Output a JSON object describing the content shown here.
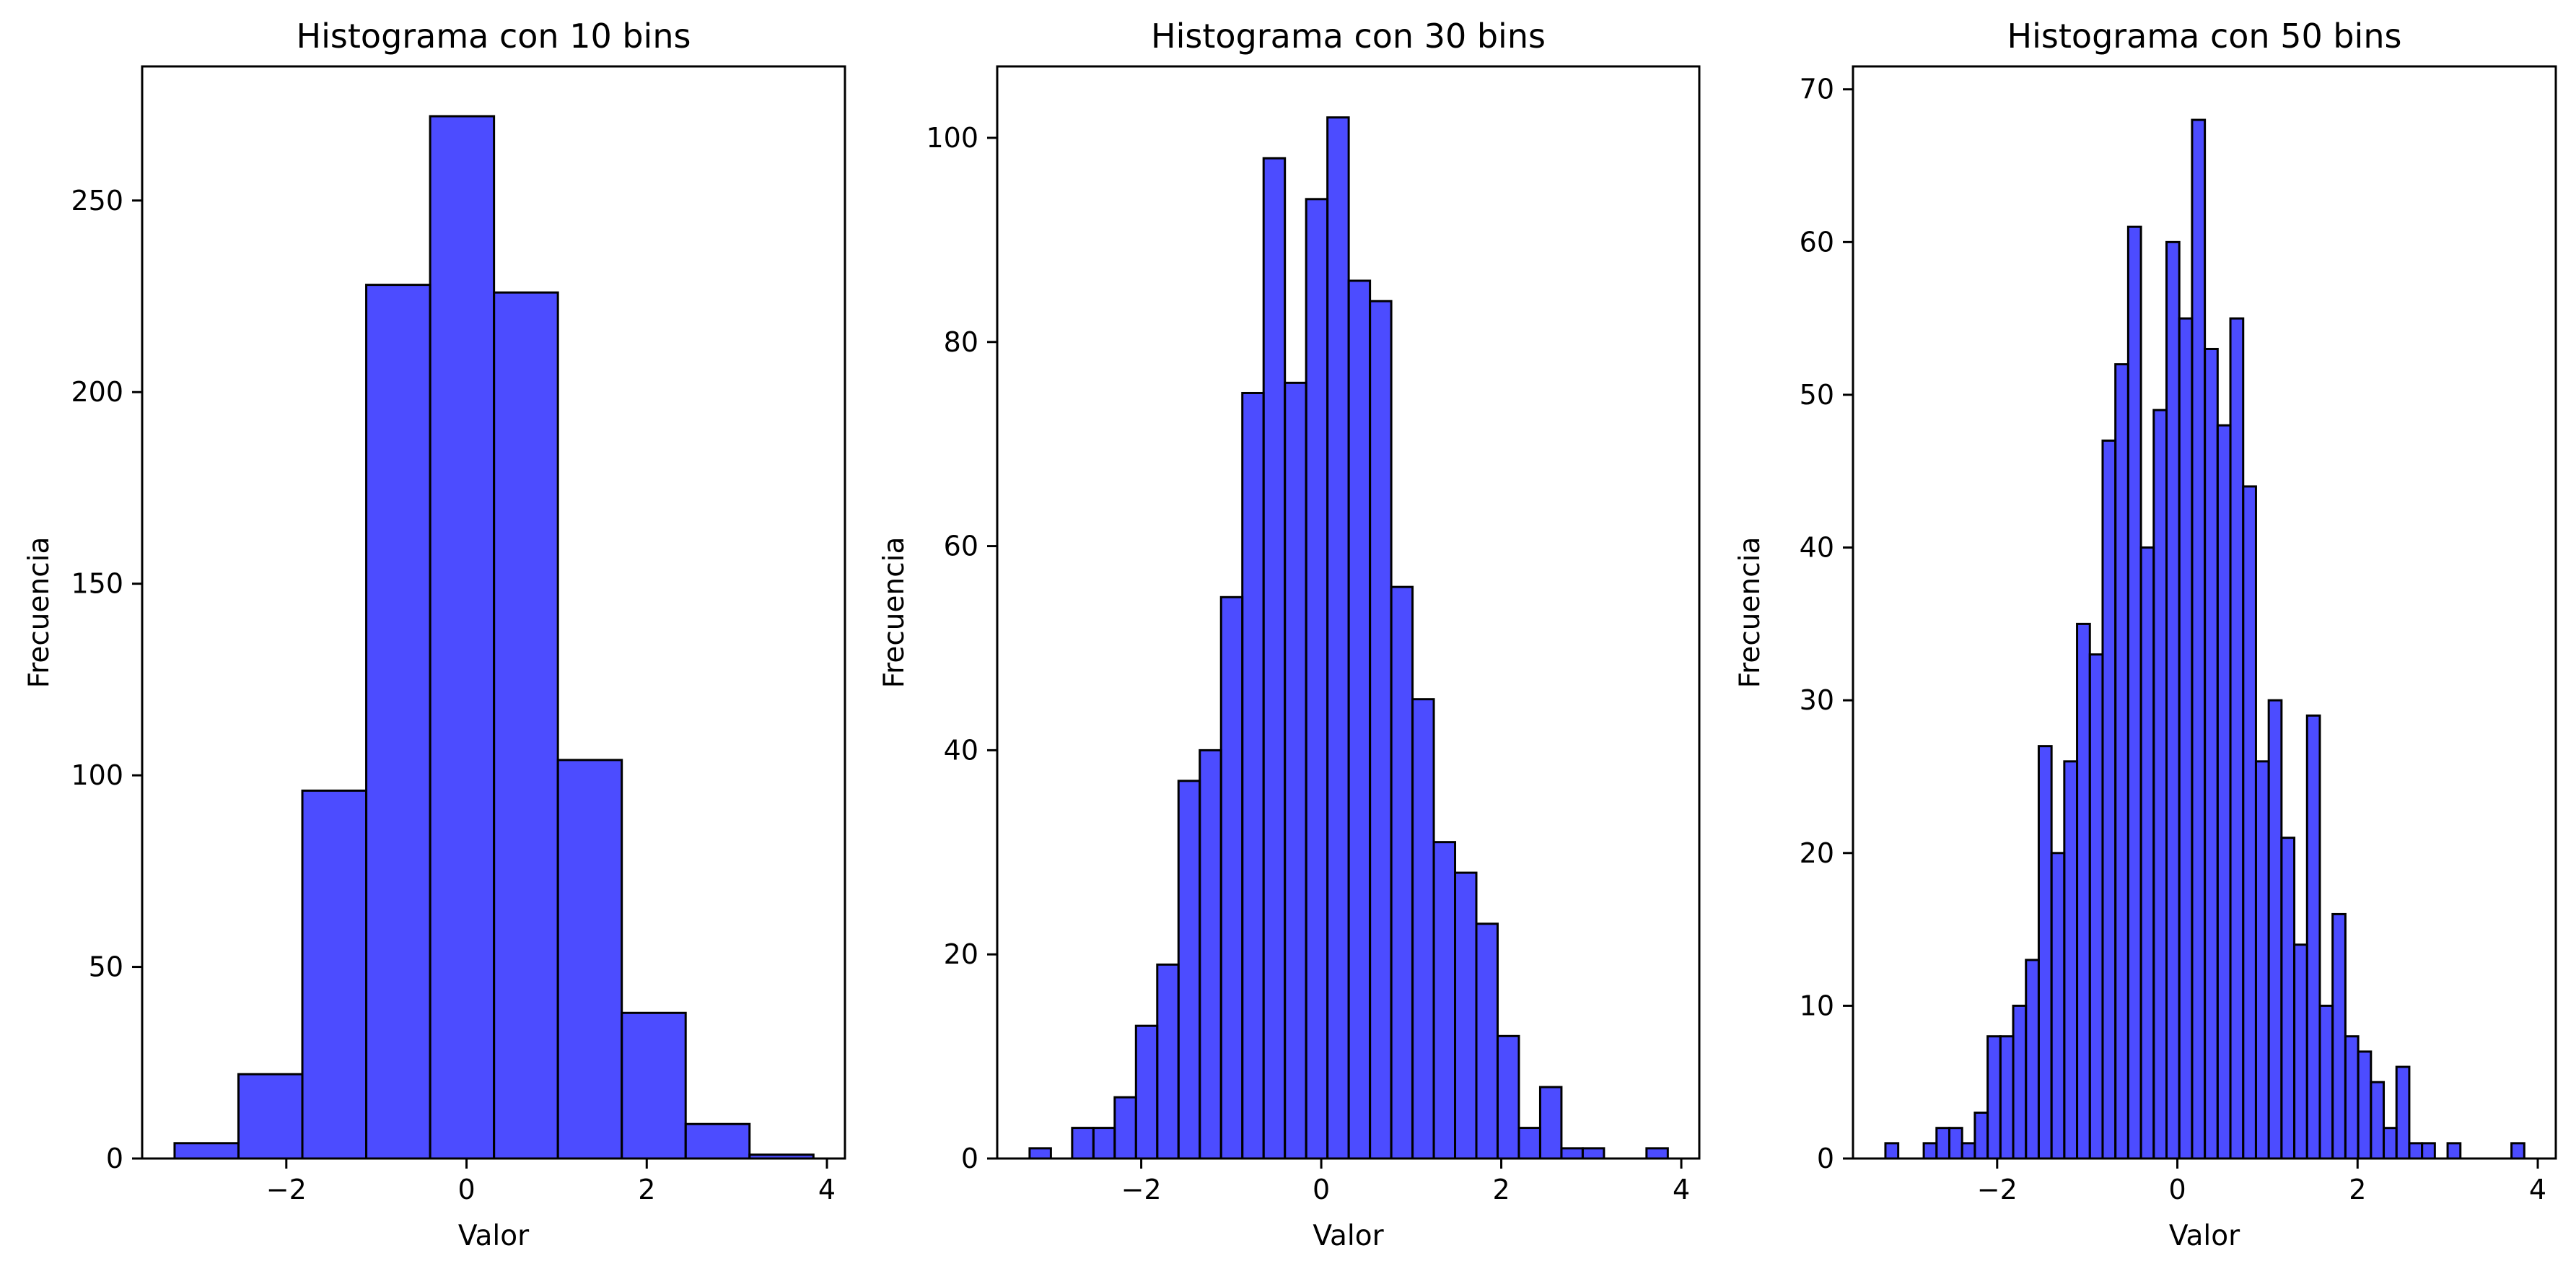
{
  "chart_data": [
    {
      "type": "bar",
      "title": "Histograma con 10 bins",
      "xlabel": "Valor",
      "ylabel": "Frecuencia",
      "bins": 10,
      "bin_range": [
        -3.24,
        3.85
      ],
      "values": [
        4,
        22,
        96,
        228,
        272,
        226,
        104,
        38,
        9,
        1
      ],
      "xlim": [
        -3.6,
        4.2
      ],
      "ylim": [
        0,
        285
      ],
      "xticks": [
        -2,
        0,
        2,
        4
      ],
      "xtick_labels": [
        "−2",
        "0",
        "2",
        "4"
      ],
      "yticks": [
        0,
        50,
        100,
        150,
        200,
        250
      ],
      "ytick_labels": [
        "0",
        "50",
        "100",
        "150",
        "200",
        "250"
      ],
      "color": "#0000ff",
      "edgecolor": "#000000"
    },
    {
      "type": "bar",
      "title": "Histograma con 30 bins",
      "xlabel": "Valor",
      "ylabel": "Frecuencia",
      "bins": 30,
      "bin_range": [
        -3.24,
        3.85
      ],
      "values": [
        1,
        0,
        3,
        3,
        6,
        13,
        19,
        37,
        40,
        55,
        75,
        98,
        76,
        94,
        102,
        86,
        84,
        56,
        45,
        31,
        28,
        23,
        12,
        3,
        7,
        1,
        1,
        0,
        0,
        1
      ],
      "xlim": [
        -3.6,
        4.2
      ],
      "ylim": [
        0,
        107
      ],
      "xticks": [
        -2,
        0,
        2,
        4
      ],
      "xtick_labels": [
        "−2",
        "0",
        "2",
        "4"
      ],
      "yticks": [
        0,
        20,
        40,
        60,
        80,
        100
      ],
      "ytick_labels": [
        "0",
        "20",
        "40",
        "60",
        "80",
        "100"
      ],
      "color": "#0000ff",
      "edgecolor": "#000000"
    },
    {
      "type": "bar",
      "title": "Histograma con 50 bins",
      "xlabel": "Valor",
      "ylabel": "Frecuencia",
      "bins": 50,
      "bin_range": [
        -3.24,
        3.85
      ],
      "values": [
        1,
        0,
        0,
        1,
        2,
        2,
        1,
        3,
        8,
        8,
        10,
        13,
        27,
        20,
        26,
        35,
        33,
        47,
        52,
        61,
        40,
        49,
        60,
        55,
        68,
        53,
        48,
        55,
        44,
        26,
        30,
        21,
        14,
        29,
        10,
        16,
        8,
        7,
        5,
        2,
        6,
        1,
        1,
        0,
        1,
        0,
        0,
        0,
        0,
        1
      ],
      "xlim": [
        -3.6,
        4.2
      ],
      "ylim": [
        0,
        71.5
      ],
      "xticks": [
        -2,
        0,
        2,
        4
      ],
      "xtick_labels": [
        "−2",
        "0",
        "2",
        "4"
      ],
      "yticks": [
        0,
        10,
        20,
        30,
        40,
        50,
        60,
        70
      ],
      "ytick_labels": [
        "0",
        "10",
        "20",
        "30",
        "40",
        "50",
        "60",
        "70"
      ],
      "color": "#0000ff",
      "edgecolor": "#000000"
    }
  ]
}
